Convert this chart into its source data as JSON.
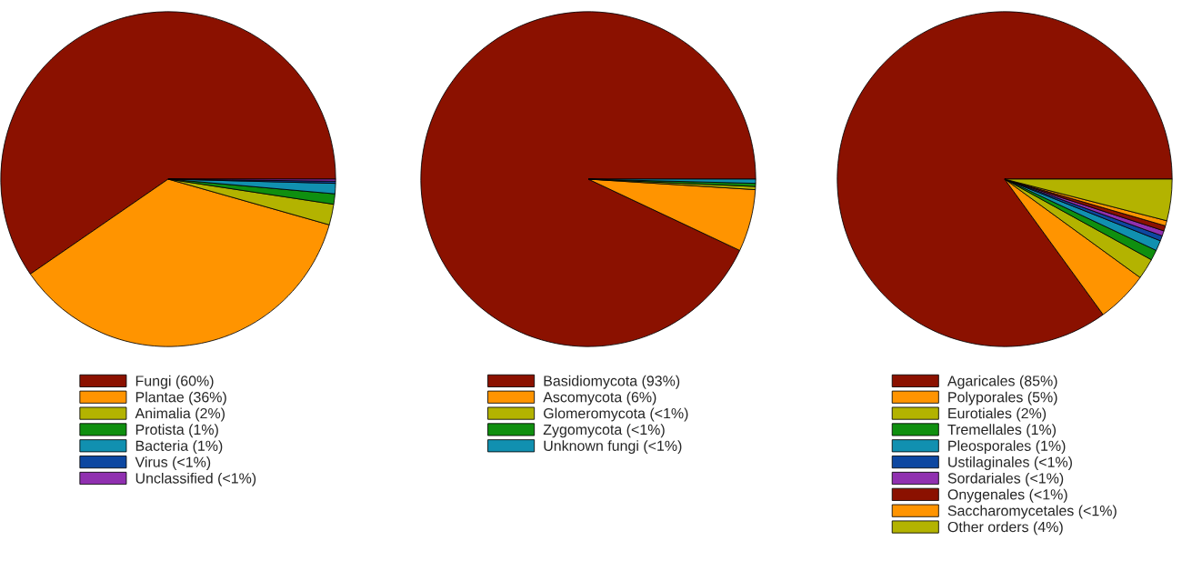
{
  "chart_data": [
    {
      "type": "pie",
      "categories": [
        "Fungi (60%)",
        "Plantae (36%)",
        "Animalia (2%)",
        "Protista (1%)",
        "Bacteria (1%)",
        "Virus (<1%)",
        "Unclassified (<1%)"
      ],
      "values": [
        59.6,
        36,
        2,
        1,
        1,
        0.2,
        0.2
      ],
      "colors": [
        "#8b1100",
        "#ff9400",
        "#b3b300",
        "#0f8f0f",
        "#1190b0",
        "#0d47a1",
        "#9030b0"
      ],
      "legend": "bottom"
    },
    {
      "type": "pie",
      "categories": [
        "Basidiomycota (93%)",
        "Ascomycota (6%)",
        "Glomeromycota (<1%)",
        "Zygomycota (<1%)",
        "Unknown fungi (<1%)"
      ],
      "values": [
        93,
        6,
        0.3,
        0.3,
        0.4
      ],
      "colors": [
        "#8b1100",
        "#ff9400",
        "#b3b300",
        "#0f8f0f",
        "#1190b0"
      ],
      "legend": "bottom"
    },
    {
      "type": "pie",
      "categories": [
        "Agaricales (85%)",
        "Polyporales (5%)",
        "Eurotiales (2%)",
        "Tremellales (1%)",
        "Pleosporales (1%)",
        "Ustilaginales (<1%)",
        "Sordariales (<1%)",
        "Onygenales (<1%)",
        "Saccharomycetales (<1%)",
        "Other orders (4%)"
      ],
      "values": [
        85,
        5,
        2,
        1,
        1,
        0.5,
        0.5,
        0.5,
        0.5,
        4
      ],
      "colors": [
        "#8b1100",
        "#ff9400",
        "#b3b300",
        "#0f8f0f",
        "#1190b0",
        "#0d47a1",
        "#9030b0",
        "#8b1100",
        "#ff9400",
        "#b3b300"
      ],
      "legend": "bottom"
    }
  ]
}
